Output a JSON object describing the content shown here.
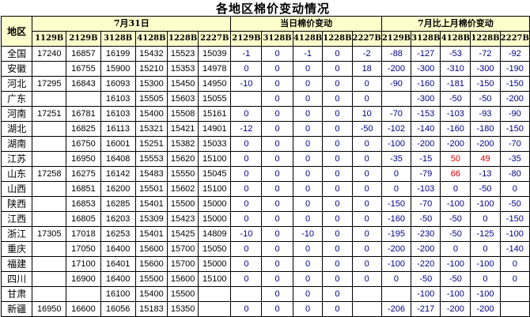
{
  "title": "各地区棉价变动情况",
  "header": {
    "region_label": "地区",
    "group_price": "7月31日",
    "group_daily": "当日棉价变动",
    "group_monthly": "7月比上月棉价变动",
    "price_cols": [
      "1129B",
      "2129B",
      "3128B",
      "4128B",
      "1228B",
      "2227B"
    ],
    "daily_cols": [
      "2129B",
      "3128B",
      "4128B",
      "1228B",
      "2227B"
    ],
    "monthly_cols": [
      "2129B",
      "3128B",
      "4128B",
      "1228B",
      "2227B"
    ]
  },
  "colors": {
    "header_bg": "#ffffcc",
    "change_text": "#00008b",
    "increase_text": "#e00000"
  },
  "rows": [
    {
      "region": "全国",
      "price": [
        "17240",
        "16857",
        "16199",
        "15432",
        "15523",
        "15039"
      ],
      "daily": [
        "-1",
        "0",
        "-1",
        "0",
        "-2"
      ],
      "monthly": [
        "-88",
        "-127",
        "-53",
        "-72",
        "-92"
      ]
    },
    {
      "region": "安徽",
      "price": [
        "",
        "16755",
        "15900",
        "15210",
        "15353",
        "14978"
      ],
      "daily": [
        "0",
        "0",
        "0",
        "0",
        "18"
      ],
      "monthly": [
        "-200",
        "-300",
        "-310",
        "-300",
        "-190"
      ]
    },
    {
      "region": "河北",
      "price": [
        "17295",
        "16843",
        "16093",
        "15300",
        "15450",
        "14950"
      ],
      "daily": [
        "-10",
        "0",
        "0",
        "0",
        "0"
      ],
      "monthly": [
        "-90",
        "-160",
        "-181",
        "-150",
        "-150"
      ]
    },
    {
      "region": "广东",
      "price": [
        "",
        "",
        "16103",
        "15505",
        "15603",
        "15055"
      ],
      "daily": [
        "",
        "0",
        "0",
        "0",
        "0"
      ],
      "monthly": [
        "",
        "-300",
        "-50",
        "-50",
        "-200"
      ]
    },
    {
      "region": "河南",
      "price": [
        "17251",
        "16781",
        "16103",
        "15400",
        "15508",
        "15161"
      ],
      "daily": [
        "0",
        "0",
        "0",
        "0",
        "10"
      ],
      "monthly": [
        "-70",
        "-153",
        "-103",
        "-93",
        "-90"
      ]
    },
    {
      "region": "湖北",
      "price": [
        "",
        "16825",
        "16113",
        "15321",
        "15421",
        "14901"
      ],
      "daily": [
        "-12",
        "0",
        "0",
        "0",
        "-50"
      ],
      "monthly": [
        "-102",
        "-140",
        "-160",
        "-180",
        "-150"
      ]
    },
    {
      "region": "湖南",
      "price": [
        "",
        "16750",
        "16001",
        "15251",
        "15382",
        "15033"
      ],
      "daily": [
        "0",
        "0",
        "0",
        "0",
        "0"
      ],
      "monthly": [
        "-100",
        "-200",
        "-200",
        "-200",
        "-70"
      ]
    },
    {
      "region": "江苏",
      "price": [
        "",
        "16950",
        "16408",
        "15553",
        "15620",
        "15100"
      ],
      "daily": [
        "0",
        "0",
        "0",
        "0",
        "0"
      ],
      "monthly": [
        "-35",
        "-15",
        "50",
        "49",
        "-35"
      ]
    },
    {
      "region": "山东",
      "price": [
        "17258",
        "16275",
        "16142",
        "15483",
        "15550",
        "15045"
      ],
      "daily": [
        "0",
        "0",
        "0",
        "0",
        "0"
      ],
      "monthly": [
        "0",
        "-79",
        "66",
        "-13",
        "-80"
      ]
    },
    {
      "region": "山西",
      "price": [
        "",
        "16851",
        "16200",
        "15501",
        "15602",
        "15100"
      ],
      "daily": [
        "0",
        "0",
        "0",
        "0",
        "0"
      ],
      "monthly": [
        "0",
        "-103",
        "0",
        "-50",
        "0"
      ]
    },
    {
      "region": "陕西",
      "price": [
        "",
        "16853",
        "16285",
        "15401",
        "15500",
        "15000"
      ],
      "daily": [
        "0",
        "0",
        "0",
        "0",
        "0"
      ],
      "monthly": [
        "-150",
        "-70",
        "-100",
        "-100",
        "-50"
      ]
    },
    {
      "region": "江西",
      "price": [
        "",
        "16805",
        "16203",
        "15309",
        "15423",
        "15000"
      ],
      "daily": [
        "0",
        "0",
        "0",
        "0",
        "0"
      ],
      "monthly": [
        "-160",
        "-50",
        "-50",
        "0",
        "-150"
      ]
    },
    {
      "region": "浙江",
      "price": [
        "17305",
        "17018",
        "16253",
        "15401",
        "15425",
        "14809"
      ],
      "daily": [
        "-10",
        "0",
        "-10",
        "0",
        "0"
      ],
      "monthly": [
        "-195",
        "-230",
        "-50",
        "-125",
        "-100"
      ]
    },
    {
      "region": "重庆",
      "price": [
        "",
        "17050",
        "16400",
        "15600",
        "15700",
        "15050"
      ],
      "daily": [
        "0",
        "0",
        "0",
        "0",
        "0"
      ],
      "monthly": [
        "-200",
        "-200",
        "0",
        "0",
        "-140"
      ]
    },
    {
      "region": "福建",
      "price": [
        "",
        "17100",
        "16401",
        "15600",
        "15700",
        "15000"
      ],
      "daily": [
        "0",
        "0",
        "0",
        "0",
        "0"
      ],
      "monthly": [
        "-100",
        "-220",
        "-100",
        "-100",
        "0"
      ]
    },
    {
      "region": "四川",
      "price": [
        "",
        "16900",
        "16400",
        "15500",
        "15600",
        "15100"
      ],
      "daily": [
        "0",
        "0",
        "0",
        "0",
        "0"
      ],
      "monthly": [
        "0",
        "-50",
        "-50",
        "0",
        "0"
      ]
    },
    {
      "region": "甘肃",
      "price": [
        "",
        "",
        "16100",
        "15400",
        "15500",
        ""
      ],
      "daily": [
        "",
        "0",
        "0",
        "0",
        ""
      ],
      "monthly": [
        "",
        "-100",
        "-100",
        "-100",
        ""
      ]
    },
    {
      "region": "新疆",
      "price": [
        "16950",
        "16600",
        "16056",
        "15183",
        "15350",
        ""
      ],
      "daily": [
        "0",
        "0",
        "0",
        "0",
        ""
      ],
      "monthly": [
        "-206",
        "-217",
        "-200",
        "-200",
        ""
      ]
    }
  ]
}
